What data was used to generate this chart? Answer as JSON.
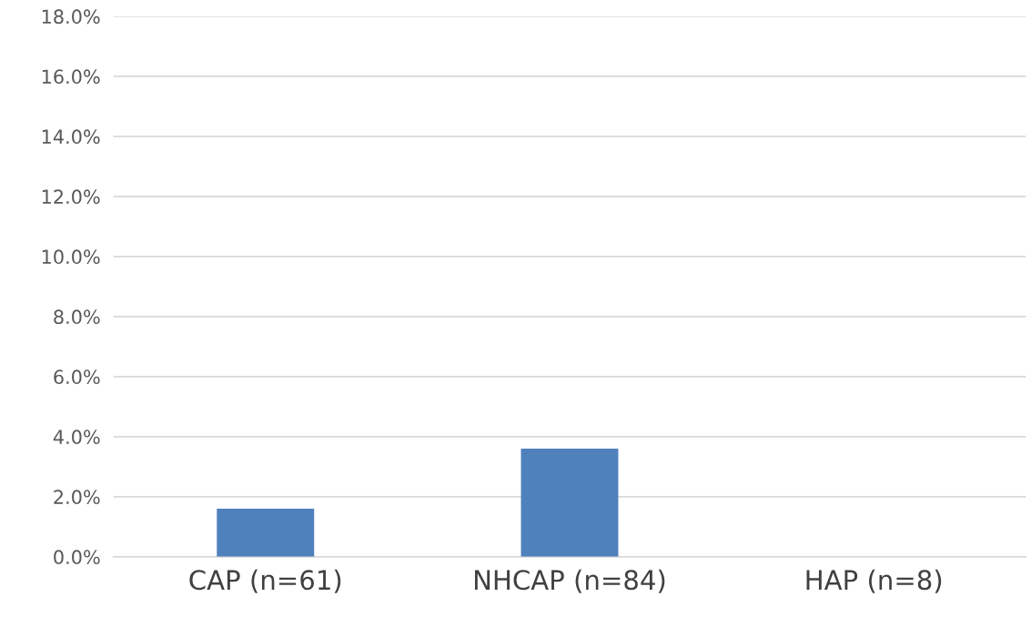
{
  "chart_data": {
    "type": "bar",
    "categories": [
      "CAP (n=61)",
      "NHCAP (n=84)",
      "HAP (n=8)"
    ],
    "values": [
      1.6,
      3.6,
      0
    ],
    "color": "#4f81bd",
    "ylim": [
      0,
      18
    ],
    "yticks": [
      {
        "value": 0,
        "label": "0.0%"
      },
      {
        "value": 2,
        "label": "2.0%"
      },
      {
        "value": 4,
        "label": "4.0%"
      },
      {
        "value": 6,
        "label": "6.0%"
      },
      {
        "value": 8,
        "label": "8.0%"
      },
      {
        "value": 10,
        "label": "10.0%"
      },
      {
        "value": 12,
        "label": "12.0%"
      },
      {
        "value": 14,
        "label": "14.0%"
      },
      {
        "value": 16,
        "label": "16.0%"
      },
      {
        "value": 18,
        "label": "18.0%"
      }
    ],
    "grid": "y"
  }
}
